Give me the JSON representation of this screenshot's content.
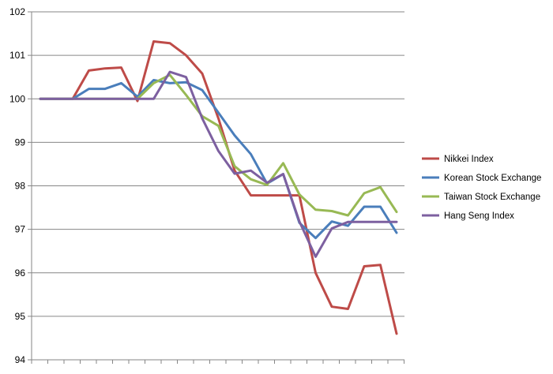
{
  "chart_data": {
    "type": "line",
    "title": "",
    "xlabel": "",
    "ylabel": "",
    "ylim": [
      94,
      102
    ],
    "yticks": [
      94,
      95,
      96,
      97,
      98,
      99,
      100,
      101,
      102
    ],
    "x_points": 23,
    "grid": "horizontal",
    "legend_position": "right",
    "series": [
      {
        "name": "Nikkei Index",
        "color": "#BE4B48",
        "values": [
          100,
          100,
          100,
          100.65,
          100.7,
          100.72,
          99.95,
          101.32,
          101.28,
          101.0,
          100.58,
          99.55,
          98.35,
          97.78,
          97.78,
          97.78,
          97.78,
          96.0,
          95.22,
          95.17,
          96.15,
          96.18,
          94.6
        ]
      },
      {
        "name": "Korean Stock Exchange",
        "color": "#4A7EBB",
        "values": [
          100,
          100,
          100,
          100.23,
          100.23,
          100.36,
          100.05,
          100.43,
          100.36,
          100.38,
          100.2,
          99.68,
          99.16,
          98.73,
          98.05,
          98.27,
          97.15,
          96.8,
          97.18,
          97.08,
          97.52,
          97.52,
          96.92
        ]
      },
      {
        "name": "Taiwan Stock Exchange",
        "color": "#98B954",
        "values": [
          100,
          100,
          100,
          100,
          100,
          100,
          100,
          100.36,
          100.55,
          100.09,
          99.6,
          99.38,
          98.45,
          98.15,
          98.02,
          98.52,
          97.8,
          97.45,
          97.42,
          97.32,
          97.83,
          97.97,
          97.4
        ]
      },
      {
        "name": "Hang Seng Index",
        "color": "#7D60A0",
        "values": [
          100,
          100,
          100,
          100,
          100,
          100,
          100,
          100,
          100.62,
          100.5,
          99.55,
          98.8,
          98.28,
          98.35,
          98.07,
          98.27,
          97.18,
          96.37,
          97.02,
          97.17,
          97.17,
          97.17,
          97.17
        ]
      }
    ]
  }
}
